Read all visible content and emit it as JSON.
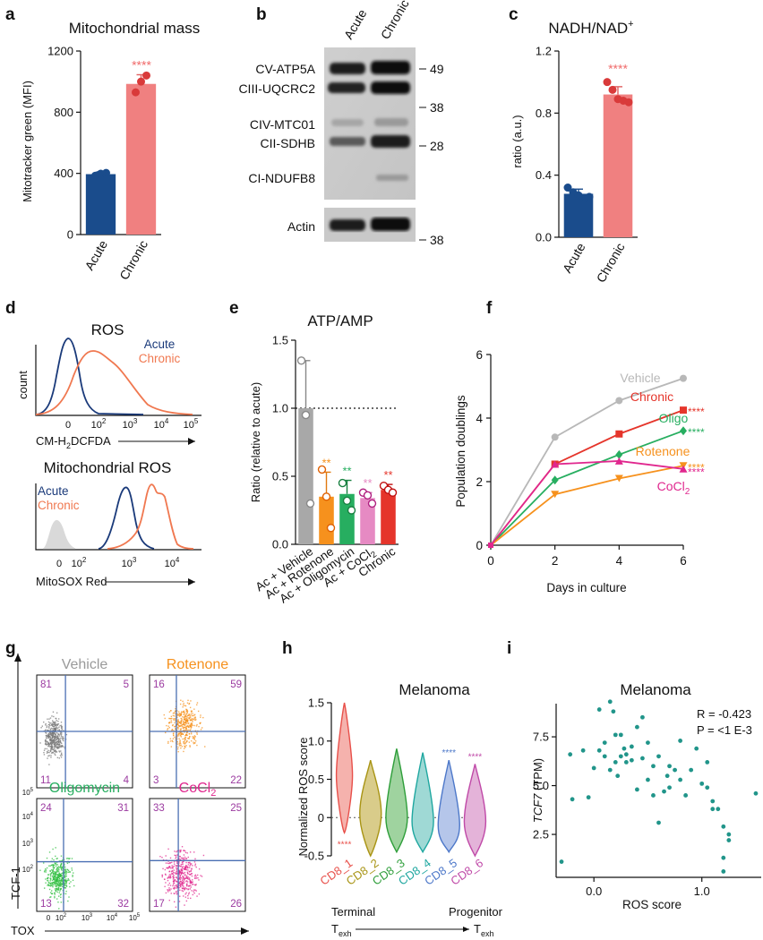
{
  "panel_letters": [
    "a",
    "b",
    "c",
    "d",
    "e",
    "f",
    "g",
    "h",
    "i"
  ],
  "colors": {
    "acute": "#1a4c8c",
    "chronic": "#f08080",
    "salmon": "#f07850",
    "sig": "#f06a6a",
    "gray": "#a8a8a8",
    "orange": "#f6911d",
    "green": "#27ae60",
    "pink": "#e68ac3",
    "red": "#e5352b",
    "magenta": "#e0278e",
    "purple": "#9b3aa0",
    "teal": "#21958a",
    "quadrant": "#4a6fb3"
  },
  "chart_data": [
    {
      "id": "a",
      "type": "bar",
      "title": "Mitochondrial mass",
      "ylabel": "Mitotracker green (MFI)",
      "xlabel": "",
      "ylim": [
        0,
        1200
      ],
      "yticks": [
        0,
        400,
        800,
        1200
      ],
      "categories": [
        "Acute",
        "Chronic"
      ],
      "values": [
        395,
        985
      ],
      "errors": [
        15,
        60
      ],
      "points": [
        [
          385,
          398,
          403
        ],
        [
          930,
          1000,
          1040
        ]
      ],
      "significance": [
        {
          "category": "Chronic",
          "label": "****"
        }
      ]
    },
    {
      "id": "c",
      "type": "bar",
      "title": "NADH/NAD",
      "title_sup": "+",
      "ylabel": "ratio (a.u.)",
      "xlabel": "",
      "ylim": [
        0,
        1.2
      ],
      "yticks": [
        "0.0",
        "0.4",
        "0.8",
        "1.2"
      ],
      "categories": [
        "Acute",
        "Chronic"
      ],
      "values": [
        0.28,
        0.92
      ],
      "errors": [
        0.03,
        0.05
      ],
      "points": [
        [
          0.32,
          0.29,
          0.27,
          0.25,
          0.26
        ],
        [
          1.0,
          0.95,
          0.89,
          0.88,
          0.87
        ]
      ],
      "significance": [
        {
          "category": "Chronic",
          "label": "****"
        }
      ]
    },
    {
      "id": "e",
      "type": "bar",
      "title": "ATP/AMP",
      "ylabel": "Ratio (relative to acute)",
      "xlabel": "",
      "ylim": [
        0,
        1.5
      ],
      "yticks": [
        "0.0",
        "0.5",
        "1.0",
        "1.5"
      ],
      "reference_line": 1.0,
      "categories": [
        "Ac + Vehicle",
        "Ac + Rotenone",
        "Ac + Oligomycin",
        "Ac + CoCl",
        "Chronic"
      ],
      "category_subscripts": [
        "",
        "",
        "",
        "2",
        ""
      ],
      "values": [
        1.0,
        0.35,
        0.37,
        0.34,
        0.4
      ],
      "errors": [
        0.35,
        0.18,
        0.1,
        0.04,
        0.04
      ],
      "points": [
        [
          1.35,
          0.95,
          0.3
        ],
        [
          0.55,
          0.35,
          0.12
        ],
        [
          0.45,
          0.32,
          0.25
        ],
        [
          0.38,
          0.36,
          0.3
        ],
        [
          0.43,
          0.4,
          0.38
        ]
      ],
      "significance": [
        "",
        "**",
        "**",
        "**",
        "**"
      ]
    },
    {
      "id": "f",
      "type": "line",
      "title": "",
      "xlabel": "Days in culture",
      "ylabel": "Population doublings",
      "xlim": [
        0,
        6
      ],
      "ylim": [
        0,
        6
      ],
      "xticks": [
        0,
        2,
        4,
        6
      ],
      "yticks": [
        0,
        2,
        4,
        6
      ],
      "series": [
        {
          "name": "Vehicle",
          "x": [
            0,
            2,
            4,
            6
          ],
          "y": [
            0,
            3.4,
            4.55,
            5.25
          ],
          "marker": "circle",
          "sig": ""
        },
        {
          "name": "Chronic",
          "x": [
            0,
            2,
            4,
            6
          ],
          "y": [
            0,
            2.55,
            3.5,
            4.25
          ],
          "marker": "square",
          "sig": "****"
        },
        {
          "name": "Oligo",
          "x": [
            0,
            2,
            4,
            6
          ],
          "y": [
            0,
            2.05,
            2.85,
            3.6
          ],
          "marker": "diamond",
          "sig": "****"
        },
        {
          "name": "Rotenone",
          "x": [
            0,
            2,
            4,
            6
          ],
          "y": [
            0,
            1.6,
            2.1,
            2.5
          ],
          "marker": "triangle-down",
          "sig": "****"
        },
        {
          "name": "CoCl",
          "name_sub": "2",
          "x": [
            0,
            2,
            4,
            6
          ],
          "y": [
            0,
            2.55,
            2.65,
            2.4
          ],
          "marker": "triangle-up",
          "sig": "****"
        }
      ]
    },
    {
      "id": "h",
      "type": "violin",
      "title": "Melanoma",
      "ylabel": "Normalized ROS score",
      "ylim": [
        -0.5,
        1.5
      ],
      "yticks": [
        "-0.5",
        "0",
        "0.5",
        "1.0",
        "1.5"
      ],
      "categories": [
        "CD8_1",
        "CD8_2",
        "CD8_3",
        "CD8_4",
        "CD8_5",
        "CD8_6"
      ],
      "medians": [
        0.55,
        0.05,
        0.0,
        -0.05,
        -0.1,
        -0.05
      ],
      "ranges": [
        [
          -0.2,
          1.5
        ],
        [
          -0.5,
          0.75
        ],
        [
          -0.45,
          0.9
        ],
        [
          -0.45,
          0.85
        ],
        [
          -0.45,
          0.75
        ],
        [
          -0.5,
          0.7
        ]
      ],
      "significance": [
        "****",
        "",
        "",
        "",
        "****",
        "****"
      ],
      "axis_left": "Terminal",
      "axis_right": "Progenitor",
      "axis_sub": "T",
      "axis_subsub": "exh"
    },
    {
      "id": "i",
      "type": "scatter",
      "title": "Melanoma",
      "xlabel": "ROS score",
      "ylabel_italic": "TCF7",
      "ylabel_rest": " (TPM)",
      "xlim": [
        -0.35,
        1.55
      ],
      "ylim": [
        0.3,
        9.2
      ],
      "xticks": [
        "0.0",
        "1.0"
      ],
      "yticks": [
        "2.5",
        "5.0",
        "7.5"
      ],
      "stats": [
        "R = -0.423",
        "P = <1 E-3"
      ],
      "points": [
        [
          -0.3,
          1.1
        ],
        [
          -0.2,
          4.3
        ],
        [
          -0.22,
          6.6
        ],
        [
          -0.05,
          4.4
        ],
        [
          -0.1,
          6.8
        ],
        [
          0.05,
          8.9
        ],
        [
          0.1,
          6.5
        ],
        [
          0.05,
          6.8
        ],
        [
          0.1,
          7.2
        ],
        [
          0.15,
          5.8
        ],
        [
          0.15,
          9.3
        ],
        [
          0.18,
          8.8
        ],
        [
          0.2,
          7.6
        ],
        [
          0.2,
          6.2
        ],
        [
          0.22,
          5.5
        ],
        [
          0.25,
          6.5
        ],
        [
          0.25,
          7.6
        ],
        [
          0.3,
          6.2
        ],
        [
          0.3,
          6.6
        ],
        [
          0.35,
          6.3
        ],
        [
          0.35,
          7.0
        ],
        [
          0.4,
          8.0
        ],
        [
          0.4,
          4.8
        ],
        [
          0.45,
          8.5
        ],
        [
          0.45,
          6.4
        ],
        [
          0.5,
          5.3
        ],
        [
          0.55,
          6.0
        ],
        [
          0.55,
          4.5
        ],
        [
          0.6,
          6.5
        ],
        [
          0.6,
          3.1
        ],
        [
          0.65,
          4.7
        ],
        [
          0.7,
          4.9
        ],
        [
          0.7,
          6.0
        ],
        [
          0.75,
          5.8
        ],
        [
          0.8,
          7.3
        ],
        [
          0.8,
          5.3
        ],
        [
          0.85,
          4.5
        ],
        [
          0.9,
          5.8
        ],
        [
          0.95,
          6.9
        ],
        [
          1.0,
          5.1
        ],
        [
          1.05,
          4.9
        ],
        [
          1.05,
          6.2
        ],
        [
          1.1,
          4.2
        ],
        [
          1.1,
          3.8
        ],
        [
          1.15,
          3.8
        ],
        [
          1.2,
          1.3
        ],
        [
          1.2,
          2.9
        ],
        [
          1.25,
          2.2
        ],
        [
          1.25,
          2.5
        ],
        [
          1.2,
          0.6
        ],
        [
          1.5,
          4.6
        ],
        [
          0.0,
          5.9
        ],
        [
          0.28,
          6.9
        ],
        [
          0.5,
          7.2
        ],
        [
          0.68,
          5.5
        ]
      ]
    }
  ],
  "western": {
    "columns": [
      "Acute",
      "Chronic"
    ],
    "labels": [
      "CV-ATP5A",
      "CIII-UQCRC2",
      "CIV-MTC01",
      "CII-SDHB",
      "CI-NDUFB8",
      "Actin"
    ],
    "markers": [
      "49",
      "38",
      "28",
      "38"
    ]
  },
  "flow_ros": {
    "title": "ROS",
    "ylabel": "count",
    "xlabel": "CM-H",
    "xlabel_sub": "2",
    "xlabel_rest": "DCFDA",
    "ticks": [
      "0",
      "10",
      "10",
      "10",
      "10"
    ],
    "tick_sups": [
      "",
      "2",
      "3",
      "4",
      "5"
    ],
    "legend": [
      "Acute",
      "Chronic"
    ]
  },
  "flow_mitoros": {
    "title": "Mitochondrial ROS",
    "xlabel": "MitoSOX Red",
    "ticks": [
      "0",
      "10",
      "10",
      "10"
    ],
    "tick_sups": [
      "",
      "2",
      "3",
      "4"
    ],
    "legend": [
      "Acute",
      "Chronic"
    ]
  },
  "flow_g": {
    "panels": [
      {
        "name": "Vehicle",
        "quadrants": [
          "81",
          "5",
          "11",
          "4"
        ]
      },
      {
        "name": "Rotenone",
        "quadrants": [
          "16",
          "59",
          "3",
          "22"
        ]
      },
      {
        "name": "Oligomycin",
        "quadrants": [
          "24",
          "31",
          "13",
          "32"
        ]
      },
      {
        "name": "CoCl",
        "name_sub": "2",
        "quadrants": [
          "33",
          "25",
          "17",
          "26"
        ]
      }
    ],
    "xlabel": "TOX",
    "ylabel": "TCF-1",
    "ticks": [
      "10",
      "10",
      "10",
      "10",
      "10",
      "0"
    ],
    "tick_sups": [
      "5",
      "4",
      "3",
      "2",
      "5",
      ""
    ]
  }
}
